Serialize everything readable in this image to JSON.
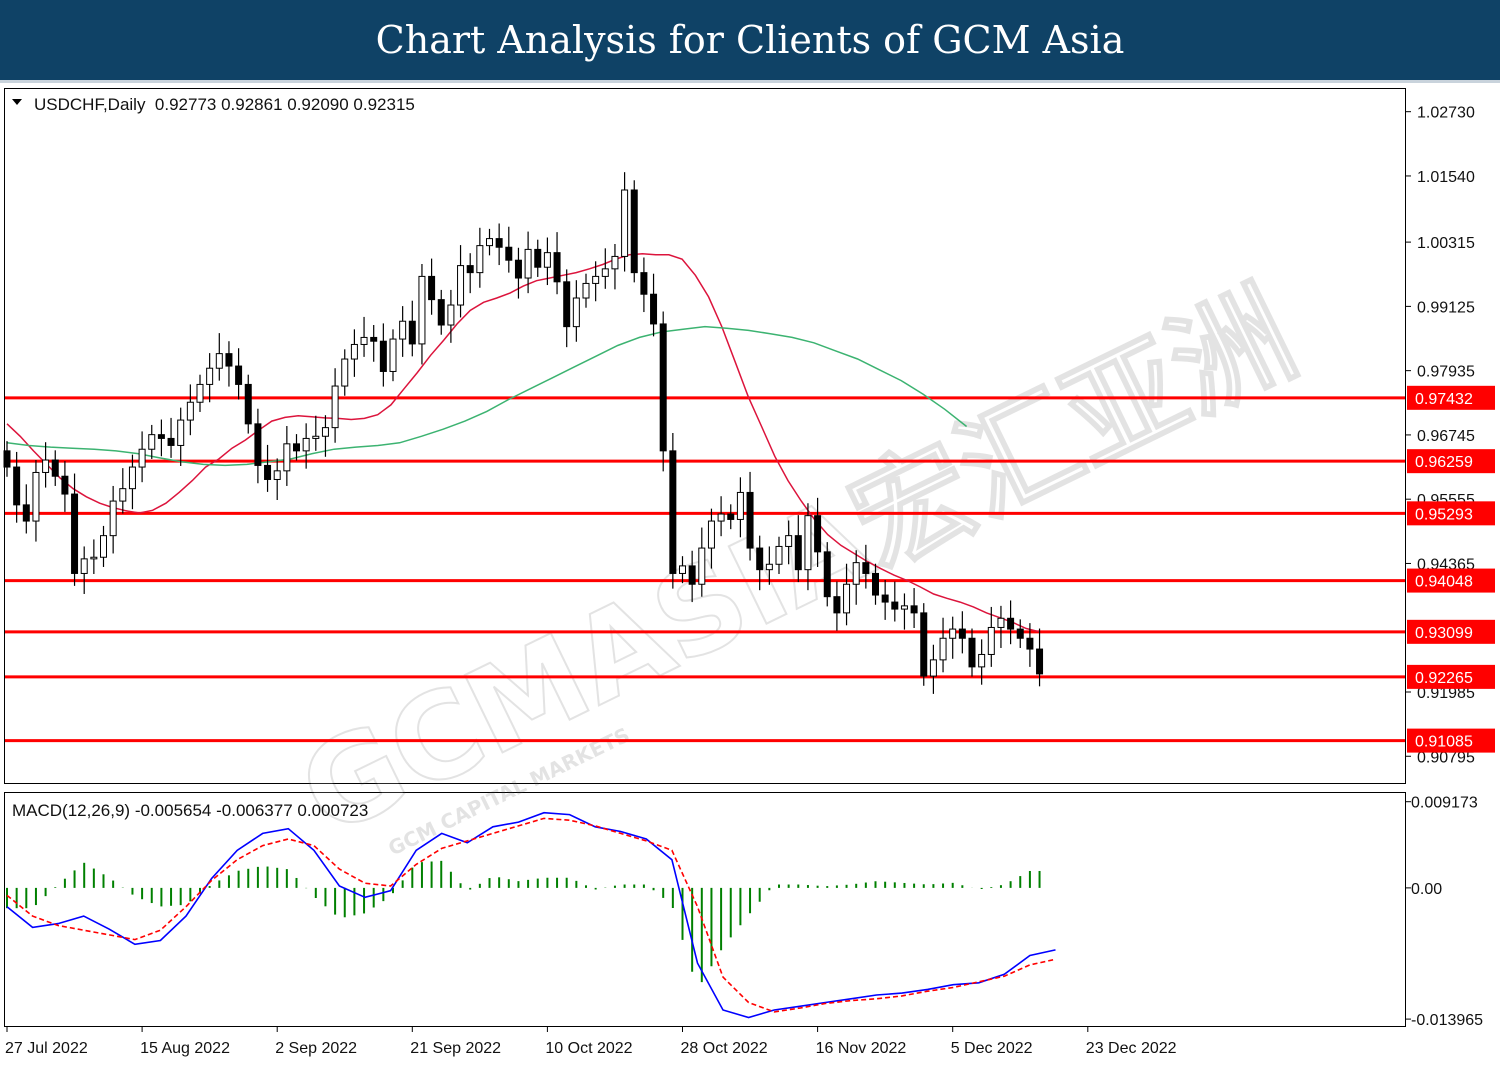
{
  "header": {
    "title": "Chart Analysis for Clients of GCM Asia"
  },
  "watermark": {
    "text": "GCMASIA宏汇亚洲",
    "subtext": "GCM CAPITAL MARKETS"
  },
  "chart_data": {
    "type": "candlestick",
    "symbol": "USDCHF",
    "timeframe": "Daily",
    "info_line": "USDCHF,Daily  0.92773 0.92861 0.92090 0.92315",
    "ohlc_last": {
      "open": 0.92773,
      "high": 0.92861,
      "low": 0.9209,
      "close": 0.92315
    },
    "price_axis": {
      "range": [
        0.903,
        1.0315
      ],
      "ticks": [
        "1.02730",
        "1.01540",
        "1.00315",
        "0.99125",
        "0.97935",
        "0.96745",
        "0.95555",
        "0.94365",
        "0.91985",
        "0.90795"
      ]
    },
    "x_axis": {
      "labels": [
        "27 Jul 2022",
        "15 Aug 2022",
        "2 Sep 2022",
        "21 Sep 2022",
        "10 Oct 2022",
        "28 Oct 2022",
        "16 Nov 2022",
        "5 Dec 2022",
        "23 Dec 2022"
      ],
      "label_bar_index": [
        0,
        14,
        28,
        42,
        56,
        70,
        84,
        98,
        112
      ]
    },
    "levels": [
      {
        "value": 0.97432,
        "label": "0.97432"
      },
      {
        "value": 0.96259,
        "label": "0.96259"
      },
      {
        "value": 0.95293,
        "label": "0.95293"
      },
      {
        "value": 0.94048,
        "label": "0.94048"
      },
      {
        "value": 0.93099,
        "label": "0.93099"
      },
      {
        "value": 0.92265,
        "label": "0.92265"
      },
      {
        "value": 0.91085,
        "label": "0.91085"
      }
    ],
    "colors": {
      "level": "#ff0000",
      "ma_fast": "#dc143c",
      "ma_slow": "#3cb371",
      "macd_line": "#0000ff",
      "signal_line": "#ff0000",
      "histogram": "#008000",
      "candle": "#000000"
    },
    "closes": [
      0.9615,
      0.9545,
      0.9515,
      0.9605,
      0.9628,
      0.9598,
      0.9565,
      0.9418,
      0.9445,
      0.9448,
      0.9488,
      0.9552,
      0.9575,
      0.9615,
      0.9648,
      0.9675,
      0.9668,
      0.9655,
      0.9702,
      0.9735,
      0.9768,
      0.9798,
      0.9825,
      0.9802,
      0.9768,
      0.9695,
      0.9618,
      0.9592,
      0.9608,
      0.9658,
      0.9645,
      0.9668,
      0.9672,
      0.9688,
      0.9765,
      0.9815,
      0.9842,
      0.9855,
      0.9848,
      0.9792,
      0.9852,
      0.9885,
      0.9843,
      0.9968,
      0.9925,
      0.9878,
      0.9915,
      0.9988,
      0.9975,
      1.0025,
      1.0038,
      1.0022,
      0.9998,
      0.9965,
      1.0018,
      0.9985,
      1.0012,
      0.9958,
      0.9875,
      0.9928,
      0.9955,
      0.9968,
      0.9982,
      1.0005,
      1.0128,
      0.9975,
      0.9935,
      0.988,
      0.9645,
      0.9418,
      0.9432,
      0.9398,
      0.9465,
      0.9515,
      0.9528,
      0.9518,
      0.9568,
      0.9465,
      0.9425,
      0.9435,
      0.9468,
      0.9488,
      0.9425,
      0.9525,
      0.9458,
      0.9375,
      0.9345,
      0.9398,
      0.9438,
      0.9418,
      0.9378,
      0.9365,
      0.9352,
      0.9358,
      0.9345,
      0.9228,
      0.9258,
      0.9298,
      0.9315,
      0.9298,
      0.9245,
      0.9268,
      0.9318,
      0.9335,
      0.9315,
      0.9298,
      0.9278,
      0.9232
    ],
    "ma_fast": [
      0.9695,
      0.9672,
      0.9645,
      0.962,
      0.9595,
      0.9575,
      0.956,
      0.9548,
      0.954,
      0.9534,
      0.953,
      0.9535,
      0.9548,
      0.9568,
      0.959,
      0.9615,
      0.963,
      0.965,
      0.9665,
      0.9683,
      0.97,
      0.9707,
      0.971,
      0.9708,
      0.9706,
      0.9705,
      0.9703,
      0.9705,
      0.9712,
      0.973,
      0.976,
      0.979,
      0.9822,
      0.985,
      0.988,
      0.9905,
      0.992,
      0.9928,
      0.9937,
      0.995,
      0.996,
      0.9965,
      0.997,
      0.9975,
      0.9982,
      0.999,
      1.0,
      1.0008,
      1.001,
      1.0008,
      1.0008,
      1.0,
      0.997,
      0.993,
      0.9875,
      0.981,
      0.9745,
      0.969,
      0.9635,
      0.959,
      0.9552,
      0.9518,
      0.949,
      0.947,
      0.9455,
      0.944,
      0.9427,
      0.9415,
      0.9405,
      0.9393,
      0.938,
      0.9372,
      0.9365,
      0.9356,
      0.9345,
      0.9336,
      0.9327,
      0.9316,
      0.931
    ],
    "ma_fast_start": 0,
    "ma_slow": [
      0.966,
      0.9655,
      0.9652,
      0.965,
      0.9648,
      0.9645,
      0.964,
      0.9632,
      0.9625,
      0.962,
      0.9618,
      0.962,
      0.9625,
      0.963,
      0.964,
      0.9648,
      0.9652,
      0.9655,
      0.966,
      0.9672,
      0.9685,
      0.97,
      0.9718,
      0.974,
      0.976,
      0.978,
      0.98,
      0.982,
      0.984,
      0.9855,
      0.9865,
      0.987,
      0.9875,
      0.9872,
      0.9868,
      0.9862,
      0.9855,
      0.9845,
      0.983,
      0.9815,
      0.9795,
      0.9775,
      0.975,
      0.9722,
      0.969
    ],
    "ma_slow_sample_step": 2,
    "macd_panel": {
      "title": "MACD(12,26,9) -0.005654 -0.006377 0.000723",
      "name": "MACD(12,26,9)",
      "main": -0.005654,
      "signal": -0.006377,
      "histogram": 0.000723,
      "ticks": [
        "0.009173",
        "0.00",
        "-0.013965"
      ],
      "range": [
        -0.0147,
        0.0101
      ],
      "macd": [
        -0.002,
        -0.0042,
        -0.0038,
        -0.003,
        -0.0044,
        -0.006,
        -0.0056,
        -0.003,
        0.001,
        0.004,
        0.0058,
        0.0063,
        0.004,
        0.0002,
        -0.001,
        -0.0003,
        0.004,
        0.0058,
        0.0048,
        0.0065,
        0.007,
        0.008,
        0.0078,
        0.0065,
        0.006,
        0.0052,
        0.003,
        -0.008,
        -0.013,
        -0.0138,
        -0.013,
        -0.0126,
        -0.0122,
        -0.0118,
        -0.0114,
        -0.0112,
        -0.0108,
        -0.0103,
        -0.0101,
        -0.0092,
        -0.0072,
        -0.0066
      ],
      "signal_line": [
        -0.0008,
        -0.003,
        -0.004,
        -0.0045,
        -0.005,
        -0.0055,
        -0.0045,
        -0.002,
        0.0008,
        0.003,
        0.0045,
        0.0052,
        0.0045,
        0.002,
        0.0005,
        0.0002,
        0.0025,
        0.0042,
        0.005,
        0.0058,
        0.0066,
        0.0074,
        0.0072,
        0.0066,
        0.0058,
        0.005,
        0.004,
        -0.002,
        -0.0095,
        -0.0122,
        -0.0132,
        -0.0128,
        -0.0123,
        -0.012,
        -0.0118,
        -0.0115,
        -0.011,
        -0.0106,
        -0.01,
        -0.0094,
        -0.0082,
        -0.0076
      ],
      "macd_sample_step": 2.65
    }
  }
}
